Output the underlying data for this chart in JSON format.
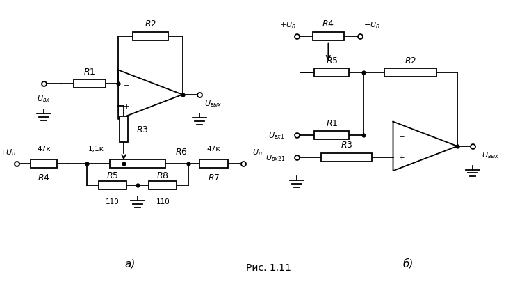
{
  "title": "Рис. 1.11",
  "label_a": "а)",
  "label_b": "б)",
  "bg_color": "#ffffff",
  "line_color": "#000000",
  "font_size_label": 9,
  "font_size_val": 8,
  "fig_width": 7.64,
  "fig_height": 4.06,
  "dpi": 100
}
